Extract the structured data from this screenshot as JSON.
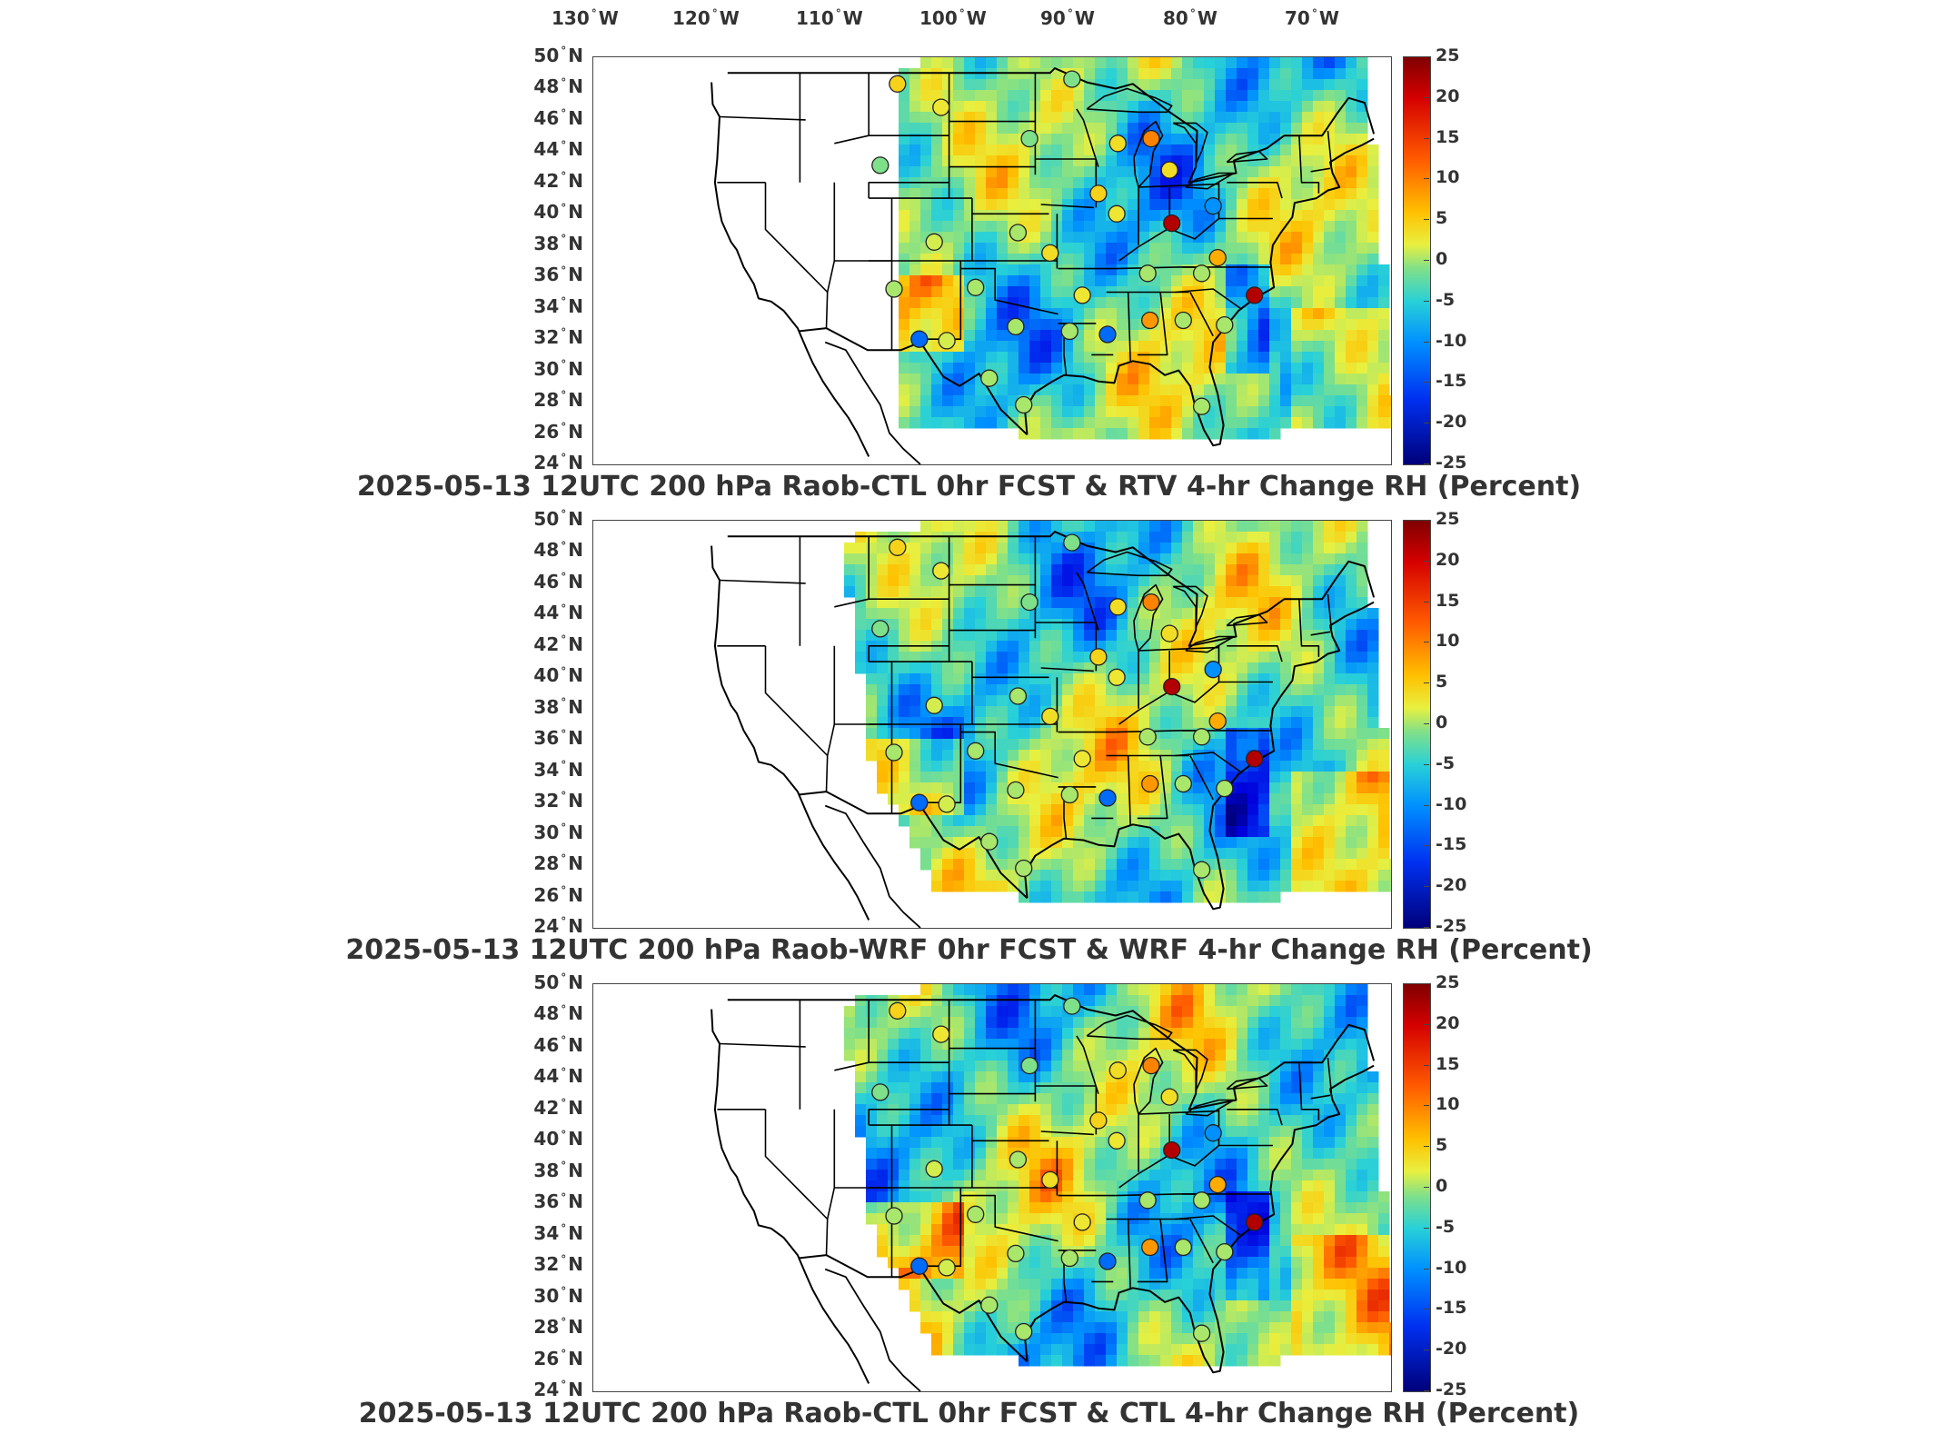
{
  "longitude_labels": [
    {
      "deg": "130",
      "dir": "W"
    },
    {
      "deg": "120",
      "dir": "W"
    },
    {
      "deg": "110",
      "dir": "W"
    },
    {
      "deg": "100",
      "dir": "W"
    },
    {
      "deg": "90",
      "dir": "W"
    },
    {
      "deg": "80",
      "dir": "W"
    },
    {
      "deg": "70",
      "dir": "W"
    }
  ],
  "latitude_labels": [
    {
      "deg": "50",
      "dir": "N"
    },
    {
      "deg": "48",
      "dir": "N"
    },
    {
      "deg": "46",
      "dir": "N"
    },
    {
      "deg": "44",
      "dir": "N"
    },
    {
      "deg": "42",
      "dir": "N"
    },
    {
      "deg": "40",
      "dir": "N"
    },
    {
      "deg": "38",
      "dir": "N"
    },
    {
      "deg": "36",
      "dir": "N"
    },
    {
      "deg": "34",
      "dir": "N"
    },
    {
      "deg": "32",
      "dir": "N"
    },
    {
      "deg": "30",
      "dir": "N"
    },
    {
      "deg": "28",
      "dir": "N"
    },
    {
      "deg": "26",
      "dir": "N"
    },
    {
      "deg": "24",
      "dir": "N"
    }
  ],
  "degree_symbol": "°",
  "colorbar": {
    "ticks": [
      "25",
      "20",
      "15",
      "10",
      "5",
      "0",
      "-5",
      "-10",
      "-15",
      "-20",
      "-25"
    ],
    "min": -25,
    "max": 25,
    "colors": {
      "high": "#800000",
      "mid": "#7fe08a",
      "low": "#00007a"
    }
  },
  "panels": [
    {
      "title": "2025-05-13 12UTC 200 hPa Raob-CTL 0hr FCST & RTV 4-hr Change RH (Percent)"
    },
    {
      "title": "2025-05-13 12UTC 200 hPa Raob-WRF 0hr FCST & WRF 4-hr Change RH (Percent)"
    },
    {
      "title": "2025-05-13 12UTC 200 hPa Raob-CTL 0hr FCST & CTL 4-hr Change RH (Percent)"
    }
  ],
  "raob_station_values_percent": [
    {
      "lon": -108.5,
      "lat": 48.3,
      "value": 8
    },
    {
      "lon": -104.7,
      "lat": 46.8,
      "value": 6
    },
    {
      "lon": -110.0,
      "lat": 43.1,
      "value": 0
    },
    {
      "lon": -97.0,
      "lat": 44.8,
      "value": 0
    },
    {
      "lon": -89.3,
      "lat": 44.5,
      "value": 7
    },
    {
      "lon": -86.4,
      "lat": 44.8,
      "value": 13
    },
    {
      "lon": -84.8,
      "lat": 42.8,
      "value": 7
    },
    {
      "lon": -91.0,
      "lat": 41.3,
      "value": 8
    },
    {
      "lon": -89.4,
      "lat": 40.0,
      "value": 6
    },
    {
      "lon": -84.6,
      "lat": 39.4,
      "value": 22
    },
    {
      "lon": -81.0,
      "lat": 40.5,
      "value": -10
    },
    {
      "lon": -105.3,
      "lat": 38.2,
      "value": 4
    },
    {
      "lon": -98.0,
      "lat": 38.8,
      "value": 2
    },
    {
      "lon": -95.2,
      "lat": 37.5,
      "value": 7
    },
    {
      "lon": -108.8,
      "lat": 35.2,
      "value": 2
    },
    {
      "lon": -101.7,
      "lat": 35.3,
      "value": 2
    },
    {
      "lon": -92.4,
      "lat": 34.8,
      "value": 6
    },
    {
      "lon": -86.7,
      "lat": 36.2,
      "value": 2
    },
    {
      "lon": -82.0,
      "lat": 36.2,
      "value": 2
    },
    {
      "lon": -80.6,
      "lat": 37.2,
      "value": 11
    },
    {
      "lon": -77.4,
      "lat": 34.8,
      "value": 22
    },
    {
      "lon": -98.2,
      "lat": 32.8,
      "value": 2
    },
    {
      "lon": -93.5,
      "lat": 32.5,
      "value": 2
    },
    {
      "lon": -90.2,
      "lat": 32.3,
      "value": -12
    },
    {
      "lon": -86.5,
      "lat": 33.2,
      "value": 12
    },
    {
      "lon": -83.6,
      "lat": 33.2,
      "value": 2
    },
    {
      "lon": -80.0,
      "lat": 32.9,
      "value": 2
    },
    {
      "lon": -106.6,
      "lat": 32.0,
      "value": -12
    },
    {
      "lon": -104.2,
      "lat": 31.9,
      "value": 4
    },
    {
      "lon": -100.5,
      "lat": 29.5,
      "value": 2
    },
    {
      "lon": -97.5,
      "lat": 27.8,
      "value": 2
    },
    {
      "lon": -82.0,
      "lat": 27.7,
      "value": 2
    },
    {
      "lon": -93.3,
      "lat": 48.6,
      "value": 0
    }
  ]
}
